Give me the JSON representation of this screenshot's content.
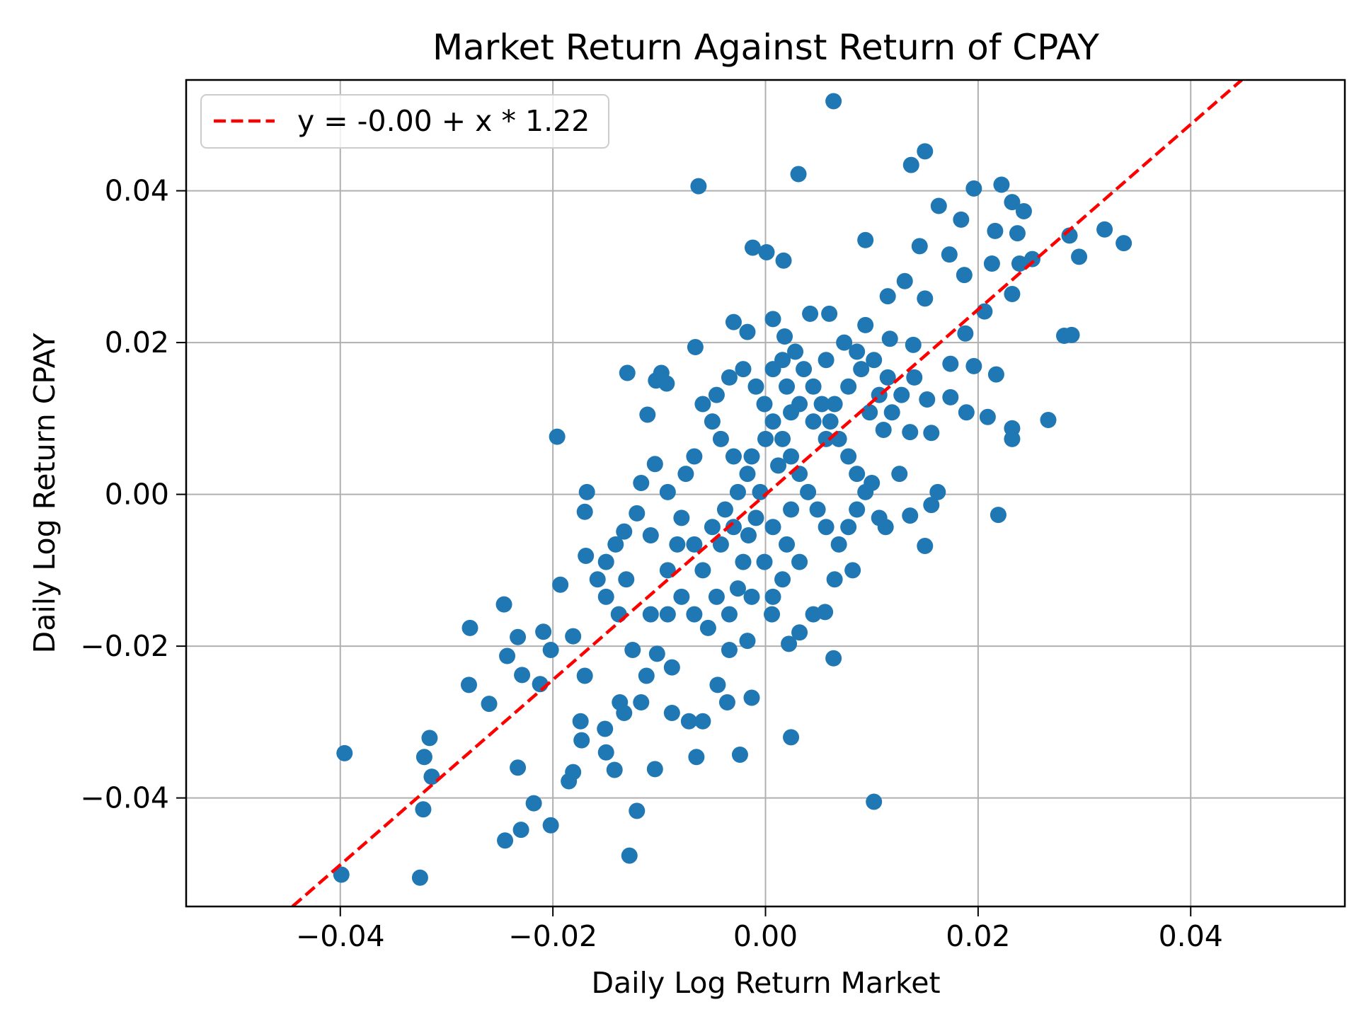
{
  "chart_data": {
    "type": "scatter",
    "title": "Market Return Against Return of CPAY",
    "xlabel": "Daily Log Return Market",
    "ylabel": "Daily Log Return CPAY",
    "xlim": [
      -0.0545,
      0.0545
    ],
    "ylim": [
      -0.0543,
      0.0546
    ],
    "xticks": [
      {
        "value": -0.04,
        "label": "−0.04"
      },
      {
        "value": -0.02,
        "label": "−0.02"
      },
      {
        "value": 0,
        "label": "0.00"
      },
      0.02,
      0.04
    ],
    "yticks": [
      {
        "value": -0.04,
        "label": "−0.04"
      },
      {
        "value": -0.02,
        "label": "−0.02"
      },
      {
        "value": 0,
        "label": "0.00"
      },
      0.02,
      0.04
    ],
    "grid": true,
    "legend": "upper left",
    "series": [
      {
        "color": "#1f77b4",
        "x": [
          0.0064,
          -0.0063,
          0.0031,
          0.015,
          0.0137,
          0.0196,
          0.0222,
          0.0232,
          0.0243,
          0.0163,
          0.0184,
          0.0319,
          0.0337,
          0.0295,
          0.0286,
          0.0251,
          0.0237,
          0.0216,
          0.0094,
          0.0145,
          0.0173,
          0.0187,
          0.0213,
          0.0239,
          -0.0012,
          0.0001,
          0.0017,
          0.0232,
          0.0281,
          0.0288,
          0.0266,
          0.0232,
          0.0232,
          0.0219,
          0.0217,
          0.0196,
          0.0209,
          0.0189,
          0.015,
          0.0156,
          0.0162,
          0.0102,
          0.0064,
          0.0024,
          -0.0024,
          -0.0013,
          -0.0065,
          -0.0128,
          -0.0121,
          -0.0104,
          -0.0142,
          -0.0181,
          -0.0185,
          -0.0202,
          -0.0218,
          -0.023,
          -0.0245,
          -0.0233,
          -0.0325,
          -0.0399,
          -0.0396,
          -0.0322,
          -0.0321,
          -0.0316,
          -0.0314,
          -0.0279,
          -0.026,
          -0.0278,
          -0.0246,
          -0.0243,
          -0.0233,
          -0.0229,
          -0.0212,
          -0.0209,
          -0.0202,
          -0.0196,
          -0.0193,
          -0.0168,
          -0.017,
          -0.0169,
          -0.0181,
          -0.017,
          -0.0174,
          -0.0173,
          -0.0151,
          -0.015,
          -0.0137,
          -0.0133,
          -0.013,
          -0.0111,
          -0.0103,
          -0.0098,
          -0.0093,
          -0.0066,
          -0.003,
          -0.0017,
          0.0007,
          0.0018,
          0.006,
          0.0042,
          0.0094,
          0.0115,
          0.0131,
          0.015,
          0.0117,
          0.0139,
          0.0174,
          0.0188,
          0.0206,
          0.0174,
          0.0136,
          0.0156,
          0.0126,
          0.0136,
          0.0113,
          0.0107,
          0.01,
          0.0082,
          0.0065,
          0.0045,
          0.0056,
          0.0032,
          0.0022,
          0.0006,
          -0.0017,
          -0.0034,
          -0.0036,
          -0.0045,
          -0.0059,
          -0.0072,
          -0.0088,
          -0.0088,
          -0.0102,
          -0.0112,
          -0.0117,
          -0.0125,
          -0.0108,
          -0.0131,
          -0.0138,
          -0.015,
          -0.0158,
          -0.015,
          -0.0141,
          -0.0133,
          -0.0121,
          -0.0108,
          -0.0117,
          -0.0104,
          -0.0092,
          -0.0079,
          -0.0067,
          -0.0059,
          -0.0046,
          -0.0034,
          -0.0026,
          -0.0021,
          -0.0016,
          -0.0009,
          -0.0005,
          -0.0017,
          -0.003,
          -0.0042,
          -0.005,
          -0.0059,
          -0.0046,
          -0.0034,
          -0.0021,
          -0.0009,
          -0.0001,
          0.0007,
          0.0016,
          0.0024,
          0.0032,
          0.004,
          0.0049,
          0.0057,
          0.0069,
          0.0078,
          0.0086,
          0.0094,
          0.0086,
          0.0078,
          0.0069,
          0.0061,
          0.0053,
          0.0045,
          0.0036,
          0.0028,
          0.0016,
          0.0007,
          0.002,
          0.0032,
          0.0045,
          0.0057,
          0.0065,
          0.0078,
          0.009,
          0.0102,
          0.0115,
          0.0107,
          0.0098,
          0.0111,
          0.0119,
          0.0128,
          0.014,
          0.0152,
          0.0074,
          0.0086,
          0.0057,
          0.0024,
          0.0012,
          0,
          -0.0013,
          -0.0026,
          -0.0038,
          -0.005,
          -0.0042,
          -0.003,
          0.0007,
          0.002,
          0.0024,
          0.0032,
          0.0016,
          -0.0001,
          -0.0013,
          0.0007,
          -0.0067,
          -0.0075,
          -0.0083,
          -0.0092,
          -0.0079,
          -0.0067,
          -0.0054,
          -0.0092
        ],
        "values": [
          0.0518,
          0.0406,
          0.0422,
          0.0452,
          0.0434,
          0.0403,
          0.0408,
          0.0385,
          0.0373,
          0.038,
          0.0362,
          0.0349,
          0.0331,
          0.0313,
          0.0341,
          0.031,
          0.0344,
          0.0347,
          0.0335,
          0.0327,
          0.0316,
          0.0289,
          0.0304,
          0.0304,
          0.0325,
          0.0319,
          0.0308,
          0.0264,
          0.0209,
          0.021,
          0.0098,
          0.0087,
          0.0073,
          -0.0027,
          0.0158,
          0.0169,
          0.0102,
          0.0108,
          -0.0068,
          -0.0014,
          0.0003,
          -0.0405,
          -0.0216,
          -0.032,
          -0.0343,
          -0.0268,
          -0.0346,
          -0.0476,
          -0.0417,
          -0.0362,
          -0.0363,
          -0.0366,
          -0.0378,
          -0.0436,
          -0.0407,
          -0.0442,
          -0.0456,
          -0.036,
          -0.0505,
          -0.0501,
          -0.0341,
          -0.0415,
          -0.0346,
          -0.0321,
          -0.0372,
          -0.0251,
          -0.0276,
          -0.0176,
          -0.0145,
          -0.0213,
          -0.0188,
          -0.0238,
          -0.025,
          -0.0181,
          -0.0205,
          0.0076,
          -0.0119,
          0.0003,
          -0.0023,
          -0.0081,
          -0.0187,
          -0.0239,
          -0.0299,
          -0.0324,
          -0.0309,
          -0.034,
          -0.0274,
          -0.0288,
          0.016,
          0.0105,
          0.015,
          0.016,
          0.0146,
          0.0194,
          0.0227,
          0.0214,
          0.0231,
          0.0208,
          0.0238,
          0.0238,
          0.0223,
          0.0261,
          0.0281,
          0.0258,
          0.0205,
          0.0197,
          0.0172,
          0.0212,
          0.0241,
          0.0128,
          0.0082,
          0.0081,
          0.0027,
          -0.0028,
          -0.0043,
          -0.0031,
          0.0015,
          -0.01,
          -0.0112,
          -0.0158,
          -0.0155,
          -0.0182,
          -0.0197,
          -0.0158,
          -0.0193,
          -0.0205,
          -0.0274,
          -0.0251,
          -0.0299,
          -0.0299,
          -0.0288,
          -0.0228,
          -0.021,
          -0.0239,
          -0.0274,
          -0.0205,
          -0.0158,
          -0.0112,
          -0.0158,
          -0.0135,
          -0.0112,
          -0.0089,
          -0.0066,
          -0.0049,
          -0.0025,
          -0.0054,
          0.0015,
          0.004,
          0.0003,
          -0.0031,
          -0.0066,
          -0.01,
          -0.0135,
          -0.0158,
          -0.0124,
          -0.0089,
          -0.0054,
          -0.0031,
          0.0003,
          0.0027,
          0.005,
          0.0073,
          0.0096,
          0.0119,
          0.0131,
          0.0154,
          0.0165,
          0.0142,
          0.0119,
          0.0096,
          0.0073,
          0.005,
          0.0027,
          0.0003,
          -0.002,
          -0.0043,
          -0.0066,
          -0.0043,
          -0.002,
          0.0003,
          0.0027,
          0.005,
          0.0073,
          0.0096,
          0.0119,
          0.0142,
          0.0165,
          0.0188,
          0.0177,
          0.0165,
          0.0142,
          0.0119,
          0.0096,
          0.0073,
          0.0119,
          0.0142,
          0.0165,
          0.0177,
          0.0154,
          0.0131,
          0.0108,
          0.0085,
          0.0108,
          0.0131,
          0.0154,
          0.0125,
          0.02,
          0.0188,
          0.0177,
          0.0108,
          0.0038,
          0.0073,
          0.005,
          0.0003,
          -0.002,
          -0.0043,
          -0.0066,
          -0.0043,
          -0.0043,
          -0.0066,
          -0.002,
          -0.0089,
          -0.0112,
          -0.0089,
          -0.0135,
          -0.0135,
          0.005,
          0.0027,
          -0.0066,
          -0.01,
          -0.0135,
          -0.0158,
          -0.0176,
          -0.0158
        ]
      },
      {
        "type": "line",
        "name": "y = -0.00 + x * 1.22",
        "color": "#ff0000",
        "linestyle": "dashed",
        "x": [
          -0.0445,
          0.0448
        ],
        "values": [
          -0.0543,
          0.0546
        ]
      }
    ]
  }
}
